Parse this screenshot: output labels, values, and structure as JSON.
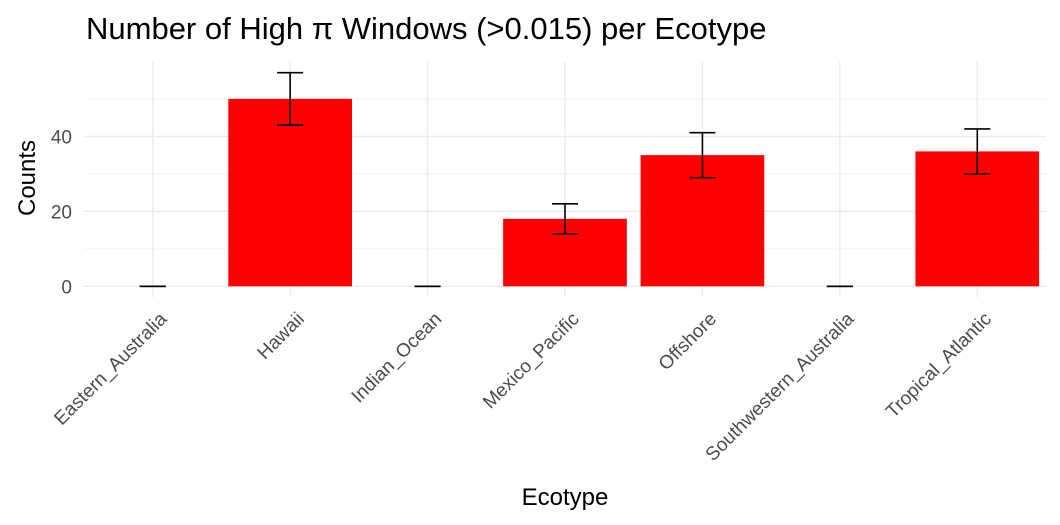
{
  "chart_data": {
    "type": "bar",
    "title": "Number of High π Windows (>0.015) per Ecotype",
    "xlabel": "Ecotype",
    "ylabel": "Counts",
    "categories": [
      "Eastern_Australia",
      "Hawaii",
      "Indian_Ocean",
      "Mexico_Pacific",
      "Offshore",
      "Southwestern_Australia",
      "Tropical_Atlantic"
    ],
    "values": [
      0,
      50,
      0,
      18,
      35,
      0,
      36
    ],
    "error_low": [
      0,
      43,
      0,
      14,
      29,
      0,
      30
    ],
    "error_high": [
      0,
      57,
      0,
      22,
      41,
      0,
      42
    ],
    "yticks": [
      0,
      20,
      40
    ],
    "ylim": [
      -2.85,
      59.85
    ],
    "bar_color": "#ff0000",
    "grid": true,
    "legend": "none"
  }
}
